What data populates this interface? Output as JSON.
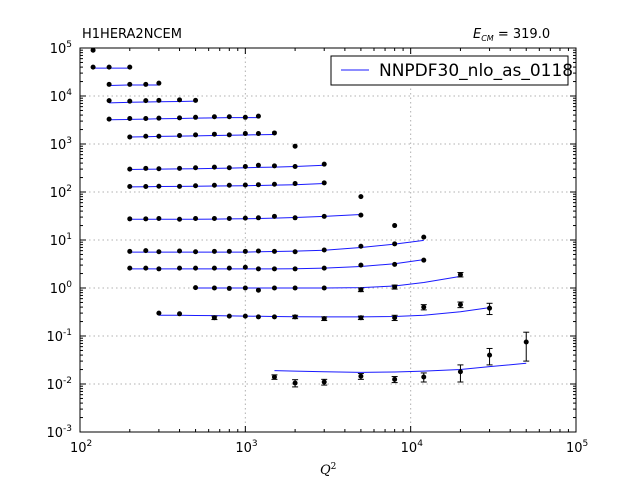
{
  "chart_data": {
    "type": "scatter",
    "title_left": "H1HERA2NCEM",
    "title_right_symbol": "E",
    "title_right_sub": "CM",
    "title_right_value": " = 319.0",
    "xlabel": "Q",
    "xlabel_sup": "2",
    "ylabel": "",
    "xscale": "log",
    "yscale": "log",
    "xlim": [
      100,
      100000
    ],
    "ylim": [
      0.001,
      100000
    ],
    "grid": true,
    "legend": {
      "placement": "top-right",
      "entries": [
        "NNPDF30_nlo_as_0118"
      ]
    },
    "colors": {
      "theory": "#1a1aff",
      "data": "#000000"
    },
    "x_ticks": [
      {
        "value": 100,
        "base": "10",
        "exp": "2"
      },
      {
        "value": 1000,
        "base": "10",
        "exp": "3"
      },
      {
        "value": 10000,
        "base": "10",
        "exp": "4"
      },
      {
        "value": 100000,
        "base": "10",
        "exp": "5"
      }
    ],
    "y_ticks": [
      {
        "value": 0.001,
        "base": "10",
        "exp": "-3"
      },
      {
        "value": 0.01,
        "base": "10",
        "exp": "-2"
      },
      {
        "value": 0.1,
        "base": "10",
        "exp": "-1"
      },
      {
        "value": 1,
        "base": "10",
        "exp": "0"
      },
      {
        "value": 10,
        "base": "10",
        "exp": "1"
      },
      {
        "value": 100,
        "base": "10",
        "exp": "2"
      },
      {
        "value": 1000,
        "base": "10",
        "exp": "3"
      },
      {
        "value": 10000,
        "base": "10",
        "exp": "4"
      },
      {
        "value": 100000,
        "base": "10",
        "exp": "5"
      }
    ],
    "series": [
      {
        "name": "NNPDF30_nlo_as_0118",
        "kind": "theory",
        "x": [
          120,
          150,
          200
        ],
        "y": [
          38000,
          38000,
          38000
        ]
      },
      {
        "kind": "theory",
        "x": [
          150,
          200,
          250,
          300
        ],
        "y": [
          16500,
          17000,
          17000,
          17000
        ]
      },
      {
        "kind": "theory",
        "x": [
          150,
          200,
          250,
          300,
          400,
          500
        ],
        "y": [
          7200,
          7400,
          7500,
          7600,
          7700,
          7800
        ]
      },
      {
        "kind": "theory",
        "x": [
          150,
          200,
          250,
          300,
          400,
          500,
          650,
          800,
          1000,
          1200
        ],
        "y": [
          3200,
          3250,
          3300,
          3350,
          3400,
          3450,
          3500,
          3550,
          3550,
          3550
        ]
      },
      {
        "kind": "theory",
        "x": [
          200,
          250,
          300,
          400,
          500,
          650,
          800,
          1000,
          1200,
          1500
        ],
        "y": [
          1400,
          1420,
          1440,
          1460,
          1480,
          1500,
          1520,
          1540,
          1560,
          1580
        ]
      },
      {
        "kind": "theory",
        "x": [
          200,
          250,
          300,
          400,
          500,
          650,
          800,
          1000,
          1200,
          1500,
          2000,
          3000
        ],
        "y": [
          295,
          298,
          300,
          303,
          306,
          310,
          315,
          320,
          325,
          330,
          340,
          360
        ]
      },
      {
        "kind": "theory",
        "x": [
          200,
          250,
          300,
          400,
          500,
          650,
          800,
          1000,
          1200,
          1500,
          2000,
          3000
        ],
        "y": [
          128,
          129,
          130,
          131,
          132,
          133,
          134,
          135,
          137,
          139,
          142,
          150
        ]
      },
      {
        "kind": "theory",
        "x": [
          200,
          250,
          300,
          400,
          500,
          650,
          800,
          1000,
          1200,
          1500,
          2000,
          3000,
          5000
        ],
        "y": [
          27,
          27,
          27,
          27,
          27,
          27.2,
          27.5,
          27.8,
          28,
          28.5,
          29.5,
          31,
          34
        ]
      },
      {
        "kind": "theory",
        "x": [
          200,
          250,
          300,
          400,
          500,
          650,
          800,
          1000,
          1200,
          1500,
          2000,
          3000,
          5000,
          8000,
          12000
        ],
        "y": [
          5.6,
          5.6,
          5.6,
          5.6,
          5.6,
          5.6,
          5.6,
          5.6,
          5.7,
          5.75,
          5.85,
          6.1,
          7.0,
          8.2,
          9.8
        ]
      },
      {
        "kind": "theory",
        "x": [
          200,
          250,
          300,
          400,
          500,
          650,
          800,
          1000,
          1200,
          1500,
          2000,
          3000,
          5000,
          8000,
          12000
        ],
        "y": [
          2.5,
          2.5,
          2.5,
          2.5,
          2.5,
          2.5,
          2.5,
          2.5,
          2.5,
          2.5,
          2.52,
          2.6,
          2.8,
          3.2,
          3.9
        ]
      },
      {
        "kind": "theory",
        "x": [
          500,
          650,
          800,
          1000,
          1200,
          1500,
          2000,
          3000,
          5000,
          8000,
          12000,
          20000
        ],
        "y": [
          1.0,
          1.0,
          1.0,
          1.0,
          1.0,
          1.0,
          1.0,
          1.0,
          1.02,
          1.1,
          1.3,
          1.75
        ]
      },
      {
        "kind": "theory",
        "x": [
          300,
          400,
          500,
          650,
          800,
          1000,
          1200,
          1500,
          2000,
          3000,
          5000,
          8000,
          12000,
          20000,
          30000
        ],
        "y": [
          0.27,
          0.27,
          0.268,
          0.265,
          0.262,
          0.26,
          0.258,
          0.255,
          0.252,
          0.25,
          0.25,
          0.255,
          0.27,
          0.32,
          0.39
        ]
      },
      {
        "kind": "theory",
        "x": [
          1500,
          2000,
          3000,
          5000,
          8000,
          12000,
          20000,
          30000,
          50000
        ],
        "y": [
          0.019,
          0.0185,
          0.018,
          0.0175,
          0.0178,
          0.0185,
          0.02,
          0.023,
          0.027
        ]
      },
      {
        "name": "data",
        "kind": "data",
        "x": [
          120,
          120,
          150,
          200
        ],
        "y": [
          90000,
          40000,
          40000,
          40000
        ],
        "err": [
          0,
          0,
          0,
          0
        ]
      },
      {
        "kind": "data",
        "x": [
          150,
          200,
          250,
          300
        ],
        "y": [
          17500,
          17500,
          17500,
          18500
        ],
        "err": [
          0,
          0,
          0,
          0
        ]
      },
      {
        "kind": "data",
        "x": [
          150,
          200,
          250,
          300,
          400,
          500
        ],
        "y": [
          8000,
          7800,
          8000,
          8100,
          8300,
          8100
        ],
        "err": [
          0,
          0,
          0,
          0,
          0,
          0
        ]
      },
      {
        "kind": "data",
        "x": [
          150,
          200,
          250,
          300,
          400,
          500,
          650,
          800,
          1000,
          1200
        ],
        "y": [
          3300,
          3400,
          3400,
          3450,
          3500,
          3600,
          3700,
          3700,
          3600,
          3800
        ],
        "err": [
          0,
          0,
          0,
          0,
          0,
          0,
          0,
          0,
          0,
          0
        ]
      },
      {
        "kind": "data",
        "x": [
          200,
          250,
          300,
          400,
          500,
          650,
          800,
          1000,
          1200,
          1500,
          2000
        ],
        "y": [
          1400,
          1450,
          1450,
          1500,
          1550,
          1600,
          1550,
          1650,
          1650,
          1700,
          900
        ],
        "err": [
          0,
          0,
          0,
          0,
          0,
          0,
          0,
          0,
          0,
          0,
          0
        ]
      },
      {
        "kind": "data",
        "x": [
          200,
          250,
          300,
          400,
          500,
          650,
          800,
          1000,
          1200,
          1500,
          2000,
          3000,
          5000
        ],
        "y": [
          300,
          310,
          305,
          310,
          320,
          330,
          320,
          340,
          360,
          350,
          340,
          380,
          80
        ],
        "err": [
          0,
          0,
          0,
          0,
          0,
          0,
          0,
          0,
          0,
          0,
          0,
          0,
          0
        ]
      },
      {
        "kind": "data",
        "x": [
          200,
          250,
          300,
          400,
          500,
          650,
          800,
          1000,
          1200,
          1500,
          2000,
          3000,
          8000
        ],
        "y": [
          130,
          130,
          132,
          131,
          135,
          138,
          138,
          140,
          142,
          145,
          150,
          155,
          20
        ],
        "err": [
          0,
          0,
          0,
          0,
          0,
          0,
          0,
          0,
          0,
          0,
          0,
          0,
          0
        ]
      },
      {
        "kind": "data",
        "x": [
          200,
          250,
          300,
          400,
          500,
          650,
          800,
          1000,
          1200,
          1500,
          2000,
          3000,
          5000,
          12000
        ],
        "y": [
          27.5,
          27.5,
          28,
          27,
          28,
          28,
          28,
          28.5,
          29,
          31,
          29,
          31,
          33,
          11.5
        ],
        "err": [
          0,
          0,
          0,
          0,
          0,
          0,
          0,
          0,
          0,
          0,
          0,
          0,
          0,
          0
        ]
      },
      {
        "kind": "data",
        "x": [
          200,
          250,
          300,
          400,
          500,
          650,
          800,
          1000,
          1200,
          1500,
          2000,
          3000,
          5000,
          8000
        ],
        "y": [
          5.8,
          6.0,
          5.7,
          5.9,
          5.7,
          5.8,
          5.8,
          5.8,
          5.9,
          5.8,
          5.7,
          6.2,
          7.4,
          8.3
        ],
        "err": [
          0,
          0,
          0,
          0,
          0,
          0,
          0,
          0,
          0,
          0,
          0,
          0,
          0,
          0
        ]
      },
      {
        "kind": "data",
        "x": [
          200,
          250,
          300,
          400,
          500,
          650,
          800,
          1000,
          1200,
          1500,
          2000,
          3000,
          5000,
          8000,
          12000,
          20000
        ],
        "y": [
          2.6,
          2.6,
          2.5,
          2.6,
          2.6,
          2.6,
          2.6,
          2.7,
          2.5,
          2.5,
          2.5,
          2.6,
          3.0,
          3.1,
          3.8,
          1.9
        ],
        "err": [
          0,
          0,
          0,
          0,
          0,
          0,
          0,
          0,
          0,
          0,
          0,
          0,
          0,
          0,
          0,
          0.2
        ]
      },
      {
        "kind": "data",
        "x": [
          500,
          650,
          800,
          1000,
          1200,
          1500,
          2000,
          3000,
          5000,
          8000,
          12000,
          20000
        ],
        "y": [
          1.02,
          1.0,
          0.98,
          1.0,
          0.9,
          1.0,
          1.0,
          1.0,
          0.92,
          1.05,
          0.4,
          0.45
        ],
        "err": [
          0,
          0,
          0,
          0,
          0,
          0,
          0,
          0,
          0.08,
          0.1,
          0.05,
          0.06
        ]
      },
      {
        "kind": "data",
        "x": [
          300,
          400,
          650,
          800,
          1000,
          1200,
          1500,
          2000,
          3000,
          5000,
          8000,
          30000
        ],
        "y": [
          0.3,
          0.29,
          0.24,
          0.26,
          0.26,
          0.25,
          0.25,
          0.25,
          0.23,
          0.24,
          0.24,
          0.38
        ],
        "err": [
          0,
          0,
          0.02,
          0,
          0,
          0,
          0,
          0.02,
          0.02,
          0.02,
          0.03,
          0.1
        ]
      },
      {
        "kind": "data",
        "x": [
          1500,
          2000,
          3000,
          5000,
          8000,
          12000,
          20000,
          30000,
          50000
        ],
        "y": [
          0.014,
          0.0105,
          0.011,
          0.0145,
          0.0125,
          0.014,
          0.018,
          0.04,
          0.075
        ],
        "err": [
          0.0015,
          0.0018,
          0.0015,
          0.002,
          0.0018,
          0.003,
          0.007,
          0.015,
          0.045
        ]
      }
    ]
  }
}
